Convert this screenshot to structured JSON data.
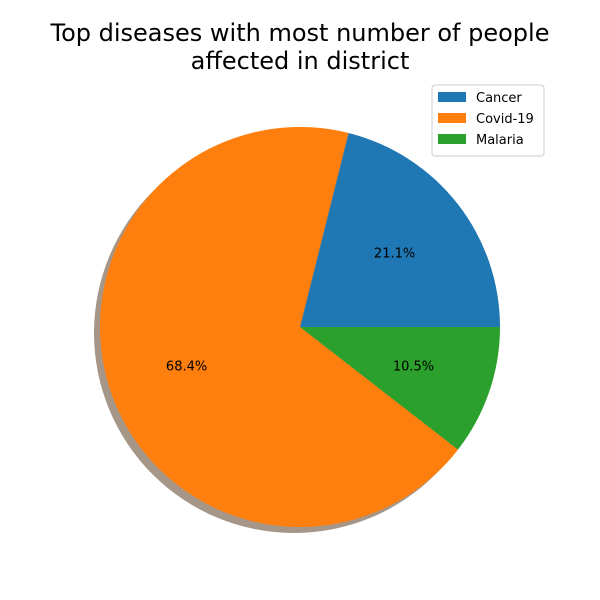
{
  "chart_data": {
    "type": "pie",
    "title_lines": [
      "Top diseases with most number of people",
      "affected in district"
    ],
    "labels": [
      "Cancer",
      "Covid-19",
      "Malaria"
    ],
    "values": [
      21.1,
      68.4,
      10.5
    ],
    "pct_labels": [
      "21.1%",
      "68.4%",
      "10.5%"
    ],
    "colors": [
      "#1f77b4",
      "#ff7f0e",
      "#2ca02c"
    ],
    "start_angle_deg": 0,
    "direction": "counterclockwise",
    "shadow": true,
    "legend_position": "top-right"
  }
}
